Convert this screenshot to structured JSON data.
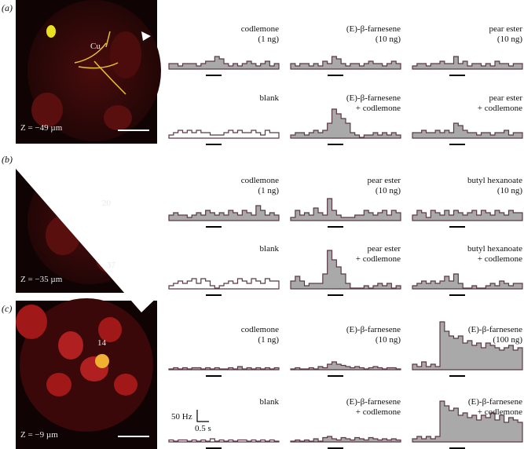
{
  "panels": [
    {
      "letter": "(a)",
      "z": "Z = −49 µm",
      "image_labels": [
        "Cu"
      ],
      "traces": [
        {
          "label": [
            "codlemone",
            "(1 ng)"
          ],
          "filled": true,
          "values": [
            20,
            20,
            10,
            20,
            20,
            20,
            10,
            20,
            30,
            30,
            50,
            40,
            20,
            10,
            20,
            10,
            20,
            30,
            20,
            10,
            20,
            30,
            10,
            20
          ]
        },
        {
          "label": [
            "(E)-β-farnesene",
            "(10 ng)"
          ],
          "filled": true,
          "values": [
            20,
            10,
            20,
            20,
            10,
            20,
            10,
            30,
            20,
            50,
            40,
            20,
            10,
            20,
            20,
            10,
            20,
            30,
            20,
            20,
            10,
            20,
            30,
            20
          ]
        },
        {
          "label": [
            "pear ester",
            "(10 ng)"
          ],
          "filled": true,
          "values": [
            10,
            20,
            20,
            10,
            20,
            20,
            30,
            20,
            20,
            50,
            20,
            30,
            10,
            20,
            20,
            10,
            20,
            10,
            30,
            20,
            20,
            10,
            20,
            20
          ]
        },
        {
          "label": [
            "blank"
          ],
          "filled": false,
          "values": [
            10,
            20,
            30,
            20,
            30,
            20,
            30,
            20,
            20,
            10,
            10,
            10,
            20,
            30,
            20,
            30,
            20,
            20,
            30,
            20,
            10,
            30,
            20,
            20
          ]
        },
        {
          "label": [
            "(E)-β-farnesene",
            "+ codlemone"
          ],
          "filled": true,
          "values": [
            10,
            20,
            20,
            10,
            20,
            30,
            20,
            30,
            60,
            120,
            100,
            80,
            60,
            20,
            10,
            0,
            10,
            10,
            20,
            10,
            20,
            10,
            20,
            10
          ]
        },
        {
          "label": [
            "pear ester",
            "+ codlemone"
          ],
          "filled": true,
          "values": [
            20,
            20,
            30,
            20,
            20,
            30,
            20,
            30,
            20,
            60,
            50,
            30,
            20,
            20,
            10,
            20,
            20,
            10,
            20,
            20,
            30,
            10,
            20,
            20
          ]
        }
      ]
    },
    {
      "letter": "(b)",
      "z": "Z = −35 µm",
      "image_labels": [
        "20",
        "37"
      ],
      "traces": [
        {
          "label": [
            "codlemone",
            "(1 ng)"
          ],
          "filled": true,
          "values": [
            20,
            30,
            20,
            20,
            10,
            20,
            30,
            20,
            40,
            30,
            20,
            30,
            20,
            40,
            30,
            20,
            40,
            30,
            20,
            60,
            40,
            20,
            30,
            20
          ]
        },
        {
          "label": [
            "pear ester",
            "(10 ng)"
          ],
          "filled": true,
          "values": [
            10,
            40,
            20,
            30,
            20,
            50,
            30,
            20,
            90,
            40,
            20,
            10,
            10,
            10,
            20,
            20,
            40,
            30,
            20,
            30,
            40,
            20,
            40,
            30
          ]
        },
        {
          "label": [
            "butyl hexanoate",
            "(10 ng)"
          ],
          "filled": true,
          "values": [
            20,
            40,
            30,
            10,
            40,
            30,
            20,
            40,
            20,
            40,
            30,
            20,
            30,
            40,
            20,
            40,
            30,
            20,
            40,
            30,
            20,
            40,
            30,
            30
          ]
        },
        {
          "label": [
            "blank"
          ],
          "filled": false,
          "values": [
            10,
            20,
            30,
            20,
            30,
            40,
            20,
            40,
            30,
            10,
            0,
            10,
            20,
            30,
            20,
            40,
            30,
            20,
            40,
            30,
            20,
            40,
            30,
            30
          ]
        },
        {
          "label": [
            "pear ester",
            "+ codlemone"
          ],
          "filled": true,
          "values": [
            30,
            50,
            30,
            10,
            20,
            20,
            20,
            60,
            160,
            120,
            90,
            60,
            20,
            0,
            0,
            0,
            10,
            0,
            10,
            20,
            10,
            20,
            0,
            10
          ]
        },
        {
          "label": [
            "butyl hexanoate",
            "+ codlemone"
          ],
          "filled": true,
          "values": [
            10,
            20,
            30,
            20,
            30,
            20,
            30,
            50,
            30,
            60,
            20,
            0,
            0,
            10,
            0,
            0,
            10,
            20,
            10,
            30,
            20,
            10,
            20,
            20
          ]
        }
      ]
    },
    {
      "letter": "(c)",
      "z": "Z = −9 µm",
      "image_labels": [
        "14"
      ],
      "scale_bar": {
        "y": "50 Hz",
        "x": "0.5 s"
      },
      "traces": [
        {
          "label": [
            "codlemone",
            "(1 ng)"
          ],
          "filled": true,
          "values": [
            0,
            5,
            0,
            5,
            0,
            5,
            5,
            0,
            5,
            0,
            5,
            0,
            0,
            5,
            0,
            10,
            0,
            5,
            0,
            5,
            0,
            5,
            0,
            5
          ]
        },
        {
          "label": [
            "(E)-β-farnesene",
            "(10 ng)"
          ],
          "filled": true,
          "values": [
            0,
            5,
            0,
            0,
            5,
            0,
            10,
            5,
            20,
            30,
            20,
            15,
            10,
            5,
            10,
            5,
            0,
            5,
            10,
            5,
            0,
            5,
            5,
            0
          ]
        },
        {
          "label": [
            "(E)-β-farnesene",
            "(100 ng)"
          ],
          "filled": true,
          "values": [
            20,
            10,
            30,
            10,
            20,
            10,
            200,
            160,
            140,
            130,
            140,
            110,
            120,
            100,
            110,
            90,
            110,
            100,
            90,
            80,
            90,
            100,
            80,
            90
          ]
        },
        {
          "label": [
            "blank"
          ],
          "filled": false,
          "values": [
            5,
            0,
            5,
            5,
            0,
            5,
            0,
            5,
            0,
            10,
            0,
            5,
            0,
            5,
            0,
            5,
            5,
            0,
            5,
            0,
            5,
            0,
            5,
            0
          ]
        },
        {
          "label": [
            "(E)-β-farnesene",
            "+ codlemone"
          ],
          "filled": true,
          "values": [
            0,
            5,
            0,
            5,
            0,
            10,
            0,
            15,
            20,
            10,
            5,
            15,
            10,
            5,
            15,
            10,
            5,
            15,
            10,
            5,
            10,
            5,
            10,
            5
          ]
        },
        {
          "label": [
            "(E)-β-farnesene",
            "+ codlemone"
          ],
          "filled": true,
          "values": [
            10,
            20,
            10,
            20,
            10,
            20,
            170,
            150,
            130,
            140,
            110,
            120,
            100,
            110,
            90,
            110,
            100,
            120,
            90,
            110,
            80,
            100,
            90,
            80
          ]
        }
      ]
    }
  ]
}
